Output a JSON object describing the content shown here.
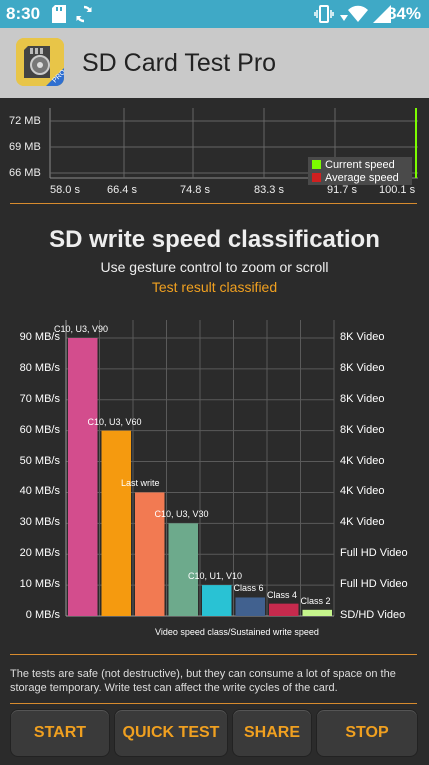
{
  "status_bar": {
    "time": "8:30",
    "battery": "84%"
  },
  "app": {
    "title": "SD Card Test Pro"
  },
  "speed_graph": {
    "y_labels": [
      "72 MB",
      "69 MB",
      "66 MB"
    ],
    "x_labels": [
      "58.0 s",
      "66.4 s",
      "74.8 s",
      "83.3 s",
      "91.7 s",
      "100.1 s"
    ],
    "legend": {
      "current": "Current speed",
      "average": "Average speed",
      "current_color": "#7cfc00",
      "average_color": "#d02020"
    }
  },
  "classification": {
    "title": "SD write speed classification",
    "subtitle": "Use gesture control to zoom or scroll",
    "status": "Test result classified",
    "status_color": "#f0a020"
  },
  "chart_data": {
    "type": "bar",
    "categories": [
      "C10, U3, V90",
      "C10, U3, V60",
      "Last write",
      "C10, U3, V30",
      "C10, U1, V10",
      "Class 6",
      "Class 4",
      "Class 2"
    ],
    "values": [
      90,
      60,
      40,
      30,
      10,
      6,
      4,
      2
    ],
    "colors": [
      "#d34d8d",
      "#f59a0f",
      "#f27a52",
      "#6daa8c",
      "#29c2d4",
      "#41618f",
      "#c62a4d",
      "#c6f58c"
    ],
    "y_ticks": [
      "90 MB/s",
      "80 MB/s",
      "70 MB/s",
      "60 MB/s",
      "50 MB/s",
      "40 MB/s",
      "30 MB/s",
      "20 MB/s",
      "10 MB/s",
      "0 MB/s"
    ],
    "y_right": [
      "8K Video",
      "8K Video",
      "8K Video",
      "8K Video",
      "4K Video",
      "4K Video",
      "4K Video",
      "Full HD Video",
      "Full HD Video",
      "SD/HD Video"
    ],
    "ylim": [
      0,
      90
    ],
    "xlabel": "Video speed class/Sustained write speed"
  },
  "notice": "The tests are safe (not destructive), but they can consume a lot of space on the storage temporary. Write test can affect the write cycles of the card.",
  "buttons": {
    "start": "START",
    "quick_test": "QUICK TEST",
    "share": "SHARE",
    "stop": "STOP"
  }
}
